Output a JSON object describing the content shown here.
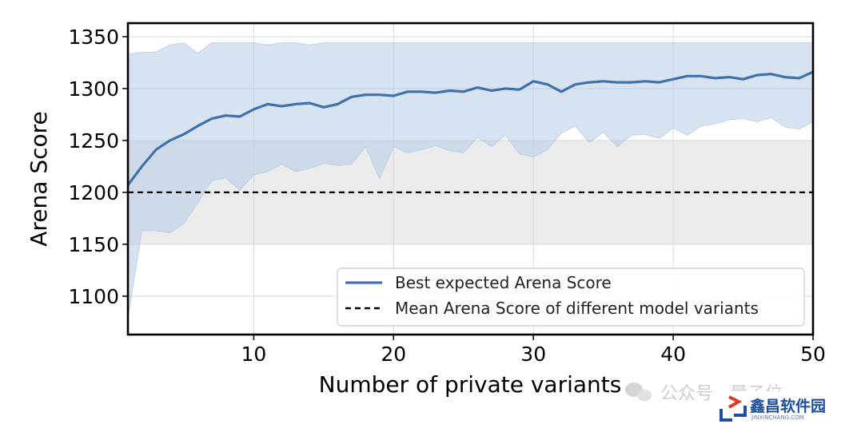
{
  "chart_data": {
    "type": "line",
    "xlabel": "Number of private variants",
    "ylabel": "Arena Score",
    "xlim": [
      1,
      50
    ],
    "ylim": [
      1063,
      1363
    ],
    "xticks": [
      10,
      20,
      30,
      40,
      50
    ],
    "yticks": [
      1100,
      1150,
      1200,
      1250,
      1300,
      1350
    ],
    "grid": true,
    "legend_position": "lower-right",
    "gray_band": [
      1150,
      1250
    ],
    "x": [
      1,
      2,
      3,
      4,
      5,
      6,
      7,
      8,
      9,
      10,
      11,
      12,
      13,
      14,
      15,
      16,
      17,
      18,
      19,
      20,
      21,
      22,
      23,
      24,
      25,
      26,
      27,
      28,
      29,
      30,
      31,
      32,
      33,
      34,
      35,
      36,
      37,
      38,
      39,
      40,
      41,
      42,
      43,
      44,
      45,
      46,
      47,
      48,
      49,
      50
    ],
    "series": [
      {
        "name": "Best expected Arena Score",
        "style": "solid",
        "color": "#3f72ad",
        "values": [
          1207,
          1225,
          1241,
          1250,
          1256,
          1264,
          1271,
          1274,
          1273,
          1280,
          1285,
          1283,
          1285,
          1286,
          1282,
          1285,
          1292,
          1294,
          1294,
          1293,
          1297,
          1297,
          1296,
          1298,
          1297,
          1301,
          1298,
          1300,
          1299,
          1307,
          1304,
          1297,
          1304,
          1306,
          1307,
          1306,
          1306,
          1307,
          1306,
          1309,
          1312,
          1312,
          1310,
          1311,
          1309,
          1313,
          1314,
          1311,
          1310,
          1316
        ],
        "band_upper": [
          1333,
          1335,
          1335,
          1342,
          1344,
          1334,
          1344,
          1344,
          1344,
          1344,
          1342,
          1344,
          1344,
          1342,
          1344,
          1344,
          1344,
          1344,
          1344,
          1344,
          1344,
          1344,
          1344,
          1344,
          1344,
          1344,
          1344,
          1344,
          1344,
          1344,
          1344,
          1344,
          1344,
          1344,
          1344,
          1344,
          1344,
          1344,
          1344,
          1344,
          1344,
          1344,
          1344,
          1344,
          1344,
          1344,
          1344,
          1344,
          1344,
          1344
        ],
        "band_lower": [
          1079,
          1163,
          1163,
          1161,
          1170,
          1190,
          1211,
          1214,
          1202,
          1217,
          1220,
          1227,
          1220,
          1223,
          1228,
          1226,
          1227,
          1244,
          1213,
          1244,
          1238,
          1241,
          1245,
          1240,
          1238,
          1253,
          1244,
          1255,
          1237,
          1234,
          1241,
          1257,
          1264,
          1248,
          1258,
          1244,
          1255,
          1256,
          1252,
          1262,
          1255,
          1264,
          1266,
          1270,
          1271,
          1268,
          1272,
          1263,
          1261,
          1268
        ]
      },
      {
        "name": "Mean Arena Score of different model variants",
        "style": "dashed",
        "color": "#000000",
        "value": 1200
      }
    ]
  },
  "colors": {
    "band_fill": "#b6cce6",
    "gray_band_fill": "#d3d3d3"
  },
  "watermark": {
    "wechat_text": "公众号 · 量子位",
    "logo_text": "鑫昌软件园",
    "logo_sub": "JINXINCHANG.COM"
  }
}
